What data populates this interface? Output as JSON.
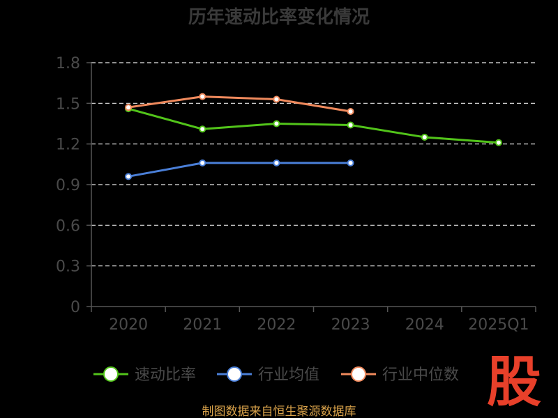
{
  "chart_data": {
    "type": "line",
    "title": "历年速动比率变化情况",
    "categories": [
      "2020",
      "2021",
      "2022",
      "2023",
      "2024",
      "2025Q1"
    ],
    "y_ticks": [
      "0",
      "0.3",
      "0.6",
      "0.9",
      "1.2",
      "1.5",
      "1.8"
    ],
    "ylim": [
      0,
      1.8
    ],
    "grid": true,
    "legend_position": "bottom",
    "series": [
      {
        "name": "速动比率",
        "color": "#52c41a",
        "values": [
          1.46,
          1.31,
          1.35,
          1.34,
          1.25,
          1.21
        ]
      },
      {
        "name": "行业均值",
        "color": "#4a7fd8",
        "values": [
          0.96,
          1.06,
          1.06,
          1.06,
          null,
          null
        ]
      },
      {
        "name": "行业中位数",
        "color": "#f08a5d",
        "values": [
          1.47,
          1.55,
          1.53,
          1.44,
          null,
          null
        ]
      }
    ]
  },
  "footer": {
    "source": "制图数据来自恒生聚源数据库"
  },
  "watermark": {
    "logo": "股"
  }
}
